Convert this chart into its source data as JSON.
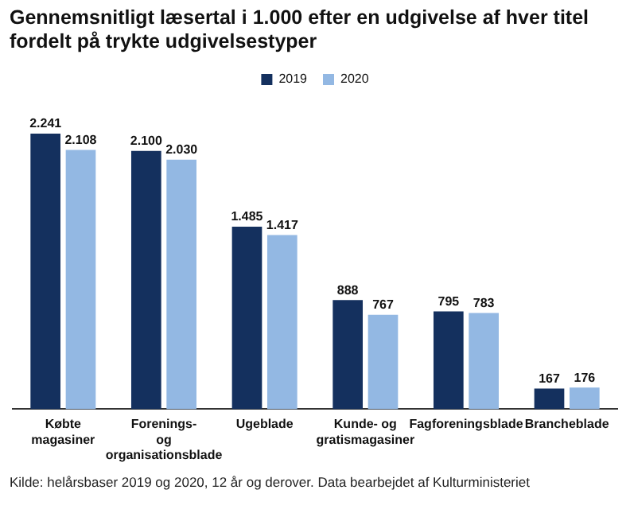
{
  "chart_data": {
    "type": "bar",
    "title": "Gennemsnitligt læsertal i 1.000 efter en udgivelse af hver titel fordelt på trykte udgivelsestyper",
    "categories": [
      "Købte magasiner",
      "Forenings- og organisationsblade",
      "Ugeblade",
      "Kunde- og gratismagasiner",
      "Fagforeningsblade",
      "Brancheblade"
    ],
    "series": [
      {
        "name": "2019",
        "color": "#14305e",
        "values": [
          2241,
          2100,
          1485,
          888,
          795,
          167
        ],
        "value_labels": [
          "2.241",
          "2.100",
          "1.485",
          "888",
          "795",
          "167"
        ]
      },
      {
        "name": "2020",
        "color": "#93b8e3",
        "values": [
          2108,
          2030,
          1417,
          767,
          783,
          176
        ],
        "value_labels": [
          "2.108",
          "2.030",
          "1.417",
          "767",
          "783",
          "176"
        ]
      }
    ],
    "legend": "top",
    "grid": false,
    "annotations": [
      "Kilde: helårsbaser 2019 og 2020, 12 år og derover. Data bearbejdet af Kulturministeriet"
    ]
  }
}
